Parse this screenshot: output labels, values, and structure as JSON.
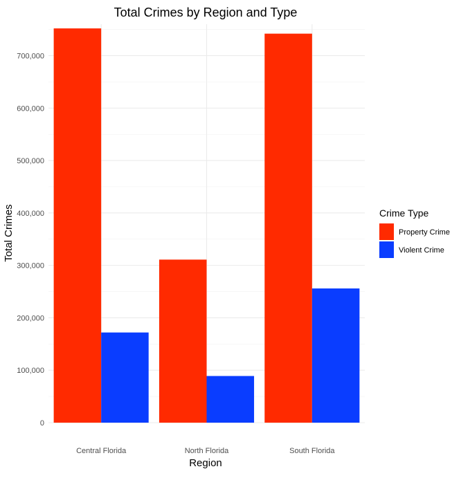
{
  "chart_data": {
    "type": "bar",
    "title": "Total Crimes by Region and Type",
    "xlabel": "Region",
    "ylabel": "Total Crimes",
    "categories": [
      "Central Florida",
      "North Florida",
      "South Florida"
    ],
    "series": [
      {
        "name": "Property Crime",
        "color": "#ff2a00",
        "values": [
          752000,
          311000,
          742000
        ]
      },
      {
        "name": "Violent Crime",
        "color": "#0a3dff",
        "values": [
          172000,
          89000,
          256000
        ]
      }
    ],
    "ylim": [
      0,
      760000
    ],
    "yticks": [
      0,
      100000,
      200000,
      300000,
      400000,
      500000,
      600000,
      700000
    ],
    "ytick_labels": [
      "0",
      "100,000",
      "200,000",
      "300,000",
      "400,000",
      "500,000",
      "600,000",
      "700,000"
    ],
    "grid": true,
    "legend": {
      "title": "Crime Type",
      "placement": "right"
    }
  }
}
